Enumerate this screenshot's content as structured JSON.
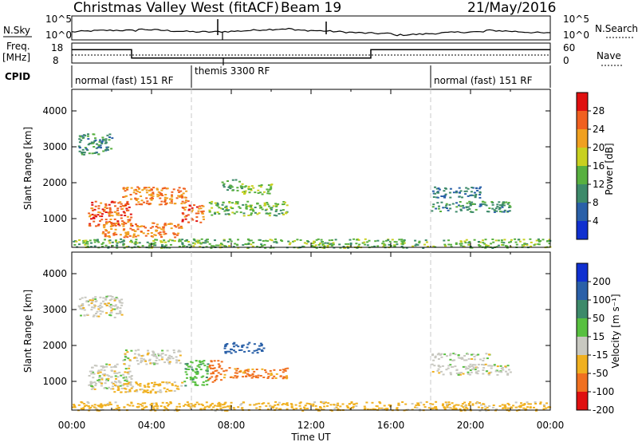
{
  "header": {
    "station": "Christmas Valley West (fitACF)",
    "beam": "Beam 19",
    "date": "21/May/2016"
  },
  "top_panels": {
    "nsky_label": "N.Sky",
    "nsky_ticks": [
      "10^5",
      "10^0"
    ],
    "nsearch_label": "N.Search",
    "nsearch_ticks": [
      "10^5",
      "10^0"
    ],
    "freq_label_1": "Freq.",
    "freq_label_2": "[MHz]",
    "freq_ticks": [
      "18",
      "8"
    ],
    "nave_label": "Nave",
    "nave_ticks": [
      "60",
      "0"
    ],
    "cpid_label": "CPID",
    "cpid_segments": [
      {
        "label": "normal (fast) 151 RF",
        "start": 0,
        "end": 6
      },
      {
        "label": "themis 3300 RF",
        "start": 6,
        "end": 18
      },
      {
        "label": "normal (fast) 151 RF",
        "start": 18,
        "end": 24
      }
    ],
    "freq_steps": [
      {
        "start": 0,
        "end": 3,
        "value": 15
      },
      {
        "start": 3,
        "end": 15,
        "value": 10
      },
      {
        "start": 15,
        "end": 24,
        "value": 15
      }
    ]
  },
  "chart_data": [
    {
      "type": "heatmap",
      "name": "power",
      "ylabel": "Slant Range [km]",
      "ylim": [
        200,
        4600
      ],
      "xlim": [
        0,
        24
      ],
      "yticks": [
        "1000",
        "2000",
        "3000",
        "4000"
      ],
      "colorbar": {
        "label": "Power [dB]",
        "ticks": [
          "4",
          "8",
          "12",
          "16",
          "20",
          "24",
          "28"
        ],
        "colors": [
          "#1030d0",
          "#2a60a8",
          "#3d8a6a",
          "#58b040",
          "#c8d020",
          "#f0a020",
          "#f06020",
          "#e01010"
        ]
      },
      "regions": [
        {
          "x": [
            0.3,
            2.0
          ],
          "y": [
            2800,
            3400
          ],
          "value": 10
        },
        {
          "x": [
            0.8,
            3.0
          ],
          "y": [
            800,
            1500
          ],
          "value": 26
        },
        {
          "x": [
            2.5,
            5.8
          ],
          "y": [
            1400,
            1900
          ],
          "value": 24
        },
        {
          "x": [
            1.5,
            5.5
          ],
          "y": [
            500,
            900
          ],
          "value": 24
        },
        {
          "x": [
            5.5,
            6.6
          ],
          "y": [
            900,
            1400
          ],
          "value": 26
        },
        {
          "x": [
            6.8,
            10.8
          ],
          "y": [
            1100,
            1500
          ],
          "value": 14
        },
        {
          "x": [
            7.5,
            8.5
          ],
          "y": [
            1800,
            2100
          ],
          "value": 12
        },
        {
          "x": [
            8.5,
            10
          ],
          "y": [
            1700,
            2000
          ],
          "value": 16
        },
        {
          "x": [
            18.0,
            20.5
          ],
          "y": [
            1600,
            1900
          ],
          "value": 8
        },
        {
          "x": [
            18.0,
            22.0
          ],
          "y": [
            1200,
            1500
          ],
          "value": 10
        },
        {
          "x": [
            0,
            24
          ],
          "y": [
            200,
            450
          ],
          "value": 14
        }
      ]
    },
    {
      "type": "heatmap",
      "name": "velocity",
      "ylabel": "Slant Range [km]",
      "xlabel": "Time UT",
      "ylim": [
        200,
        4600
      ],
      "xlim": [
        0,
        24
      ],
      "yticks": [
        "1000",
        "2000",
        "3000",
        "4000"
      ],
      "xticks": [
        "00:00",
        "04:00",
        "08:00",
        "12:00",
        "16:00",
        "20:00",
        "00:00"
      ],
      "colorbar": {
        "label": "Velocity [m s⁻¹]",
        "ticks": [
          "200",
          "100",
          "50",
          "15",
          "-15",
          "-50",
          "-100",
          "-200"
        ],
        "colors": [
          "#1030d0",
          "#2a60a8",
          "#3d8a6a",
          "#58c040",
          "#c8c8c0",
          "#f0b020",
          "#f07020",
          "#e01010"
        ]
      },
      "regions": [
        {
          "x": [
            0.3,
            2.5
          ],
          "y": [
            2800,
            3400
          ],
          "value": 0
        },
        {
          "x": [
            0.8,
            3.0
          ],
          "y": [
            800,
            1500
          ],
          "value": 0
        },
        {
          "x": [
            2.5,
            5.5
          ],
          "y": [
            1500,
            1900
          ],
          "value": 0
        },
        {
          "x": [
            2.0,
            5.5
          ],
          "y": [
            700,
            1000
          ],
          "value": -30
        },
        {
          "x": [
            5.6,
            6.8
          ],
          "y": [
            900,
            1600
          ],
          "value": 40
        },
        {
          "x": [
            6.8,
            7.5
          ],
          "y": [
            1000,
            1600
          ],
          "value": -80
        },
        {
          "x": [
            7.5,
            10.8
          ],
          "y": [
            1100,
            1400
          ],
          "value": -60
        },
        {
          "x": [
            7.6,
            9.6
          ],
          "y": [
            1800,
            2100
          ],
          "value": 180
        },
        {
          "x": [
            18.0,
            21.0
          ],
          "y": [
            1600,
            1800
          ],
          "value": 0
        },
        {
          "x": [
            18.0,
            22.0
          ],
          "y": [
            1200,
            1500
          ],
          "value": 0
        },
        {
          "x": [
            0,
            24
          ],
          "y": [
            200,
            450
          ],
          "value": -30
        }
      ]
    }
  ]
}
